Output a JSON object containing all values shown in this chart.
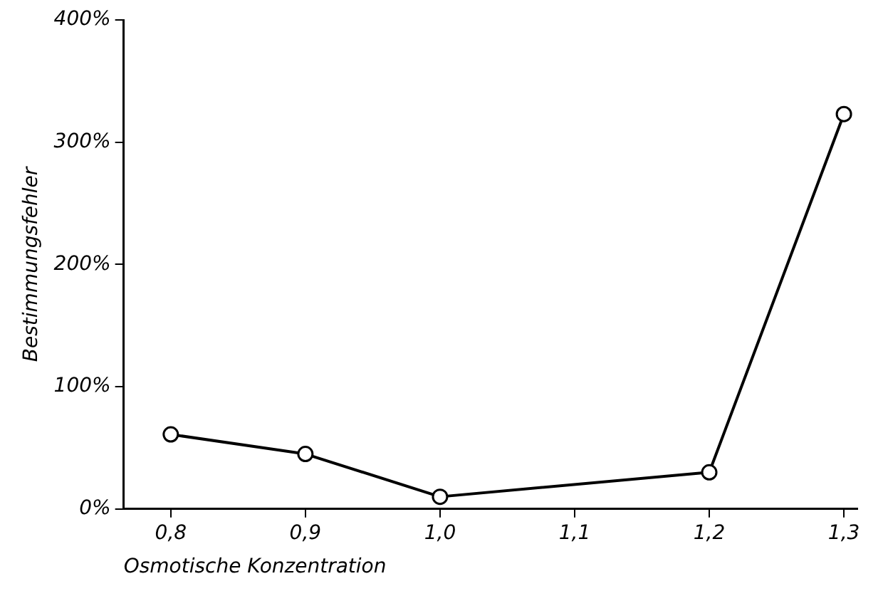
{
  "chart_data": {
    "type": "line",
    "xlabel": "Osmotische Konzentration",
    "ylabel": "Bestimmungsfehler",
    "x": [
      0.8,
      0.9,
      1.0,
      1.2,
      1.3
    ],
    "series": [
      {
        "color": "#000000",
        "values": [
          61,
          45,
          10,
          30,
          323
        ]
      }
    ],
    "xlim": [
      0.765,
      1.31
    ],
    "ylim": [
      0,
      400
    ],
    "xticks": [
      {
        "value": 0.8,
        "label": "0,8"
      },
      {
        "value": 0.9,
        "label": "0,9"
      },
      {
        "value": 1.0,
        "label": "1,0"
      },
      {
        "value": 1.1,
        "label": "1,1"
      },
      {
        "value": 1.2,
        "label": "1,2"
      },
      {
        "value": 1.3,
        "label": "1,3"
      }
    ],
    "yticks": [
      {
        "value": 0,
        "label": "0%"
      },
      {
        "value": 100,
        "label": "100%"
      },
      {
        "value": 200,
        "label": "200%"
      },
      {
        "value": 300,
        "label": "300%"
      },
      {
        "value": 400,
        "label": "400%"
      }
    ],
    "grid": false,
    "legend": false,
    "marker": "circle",
    "line_style": "solid"
  }
}
